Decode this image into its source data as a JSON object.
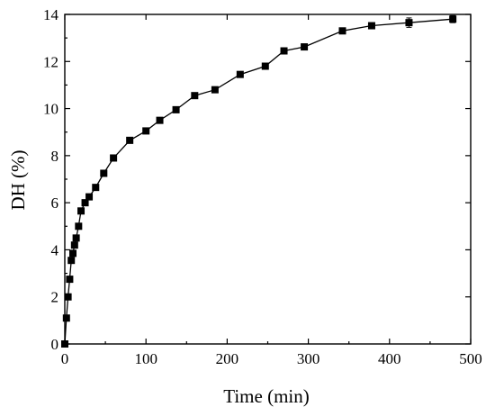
{
  "chart_data": {
    "type": "line",
    "title": "",
    "xlabel": "Time (min)",
    "ylabel": "DH (%)",
    "xlim": [
      0,
      500
    ],
    "ylim": [
      0,
      14
    ],
    "xticks": [
      0,
      100,
      200,
      300,
      400,
      500
    ],
    "yticks": [
      0,
      2,
      4,
      6,
      8,
      10,
      12,
      14
    ],
    "grid": false,
    "legend": "none",
    "marker": "square",
    "color": "#000000",
    "series": [
      {
        "x": [
          0,
          2,
          4,
          6,
          8,
          10,
          12,
          14,
          17,
          20,
          25,
          30,
          38,
          48,
          60,
          80,
          100,
          117,
          137,
          160,
          185,
          216,
          247,
          270,
          295,
          342,
          378,
          424,
          478
        ],
        "y": [
          0.0,
          1.1,
          2.0,
          2.75,
          3.55,
          3.85,
          4.2,
          4.5,
          5.0,
          5.65,
          6.0,
          6.25,
          6.65,
          7.25,
          7.9,
          8.65,
          9.05,
          9.5,
          9.95,
          10.55,
          10.8,
          11.45,
          11.8,
          12.45,
          12.62,
          13.3,
          13.52,
          13.65,
          13.8
        ],
        "yerr": [
          0,
          0,
          0,
          0,
          0,
          0,
          0,
          0,
          0,
          0,
          0,
          0,
          0,
          0,
          0,
          0,
          0,
          0,
          0,
          0,
          0,
          0,
          0,
          0,
          0,
          0,
          0,
          0.2,
          0.15
        ]
      }
    ]
  }
}
